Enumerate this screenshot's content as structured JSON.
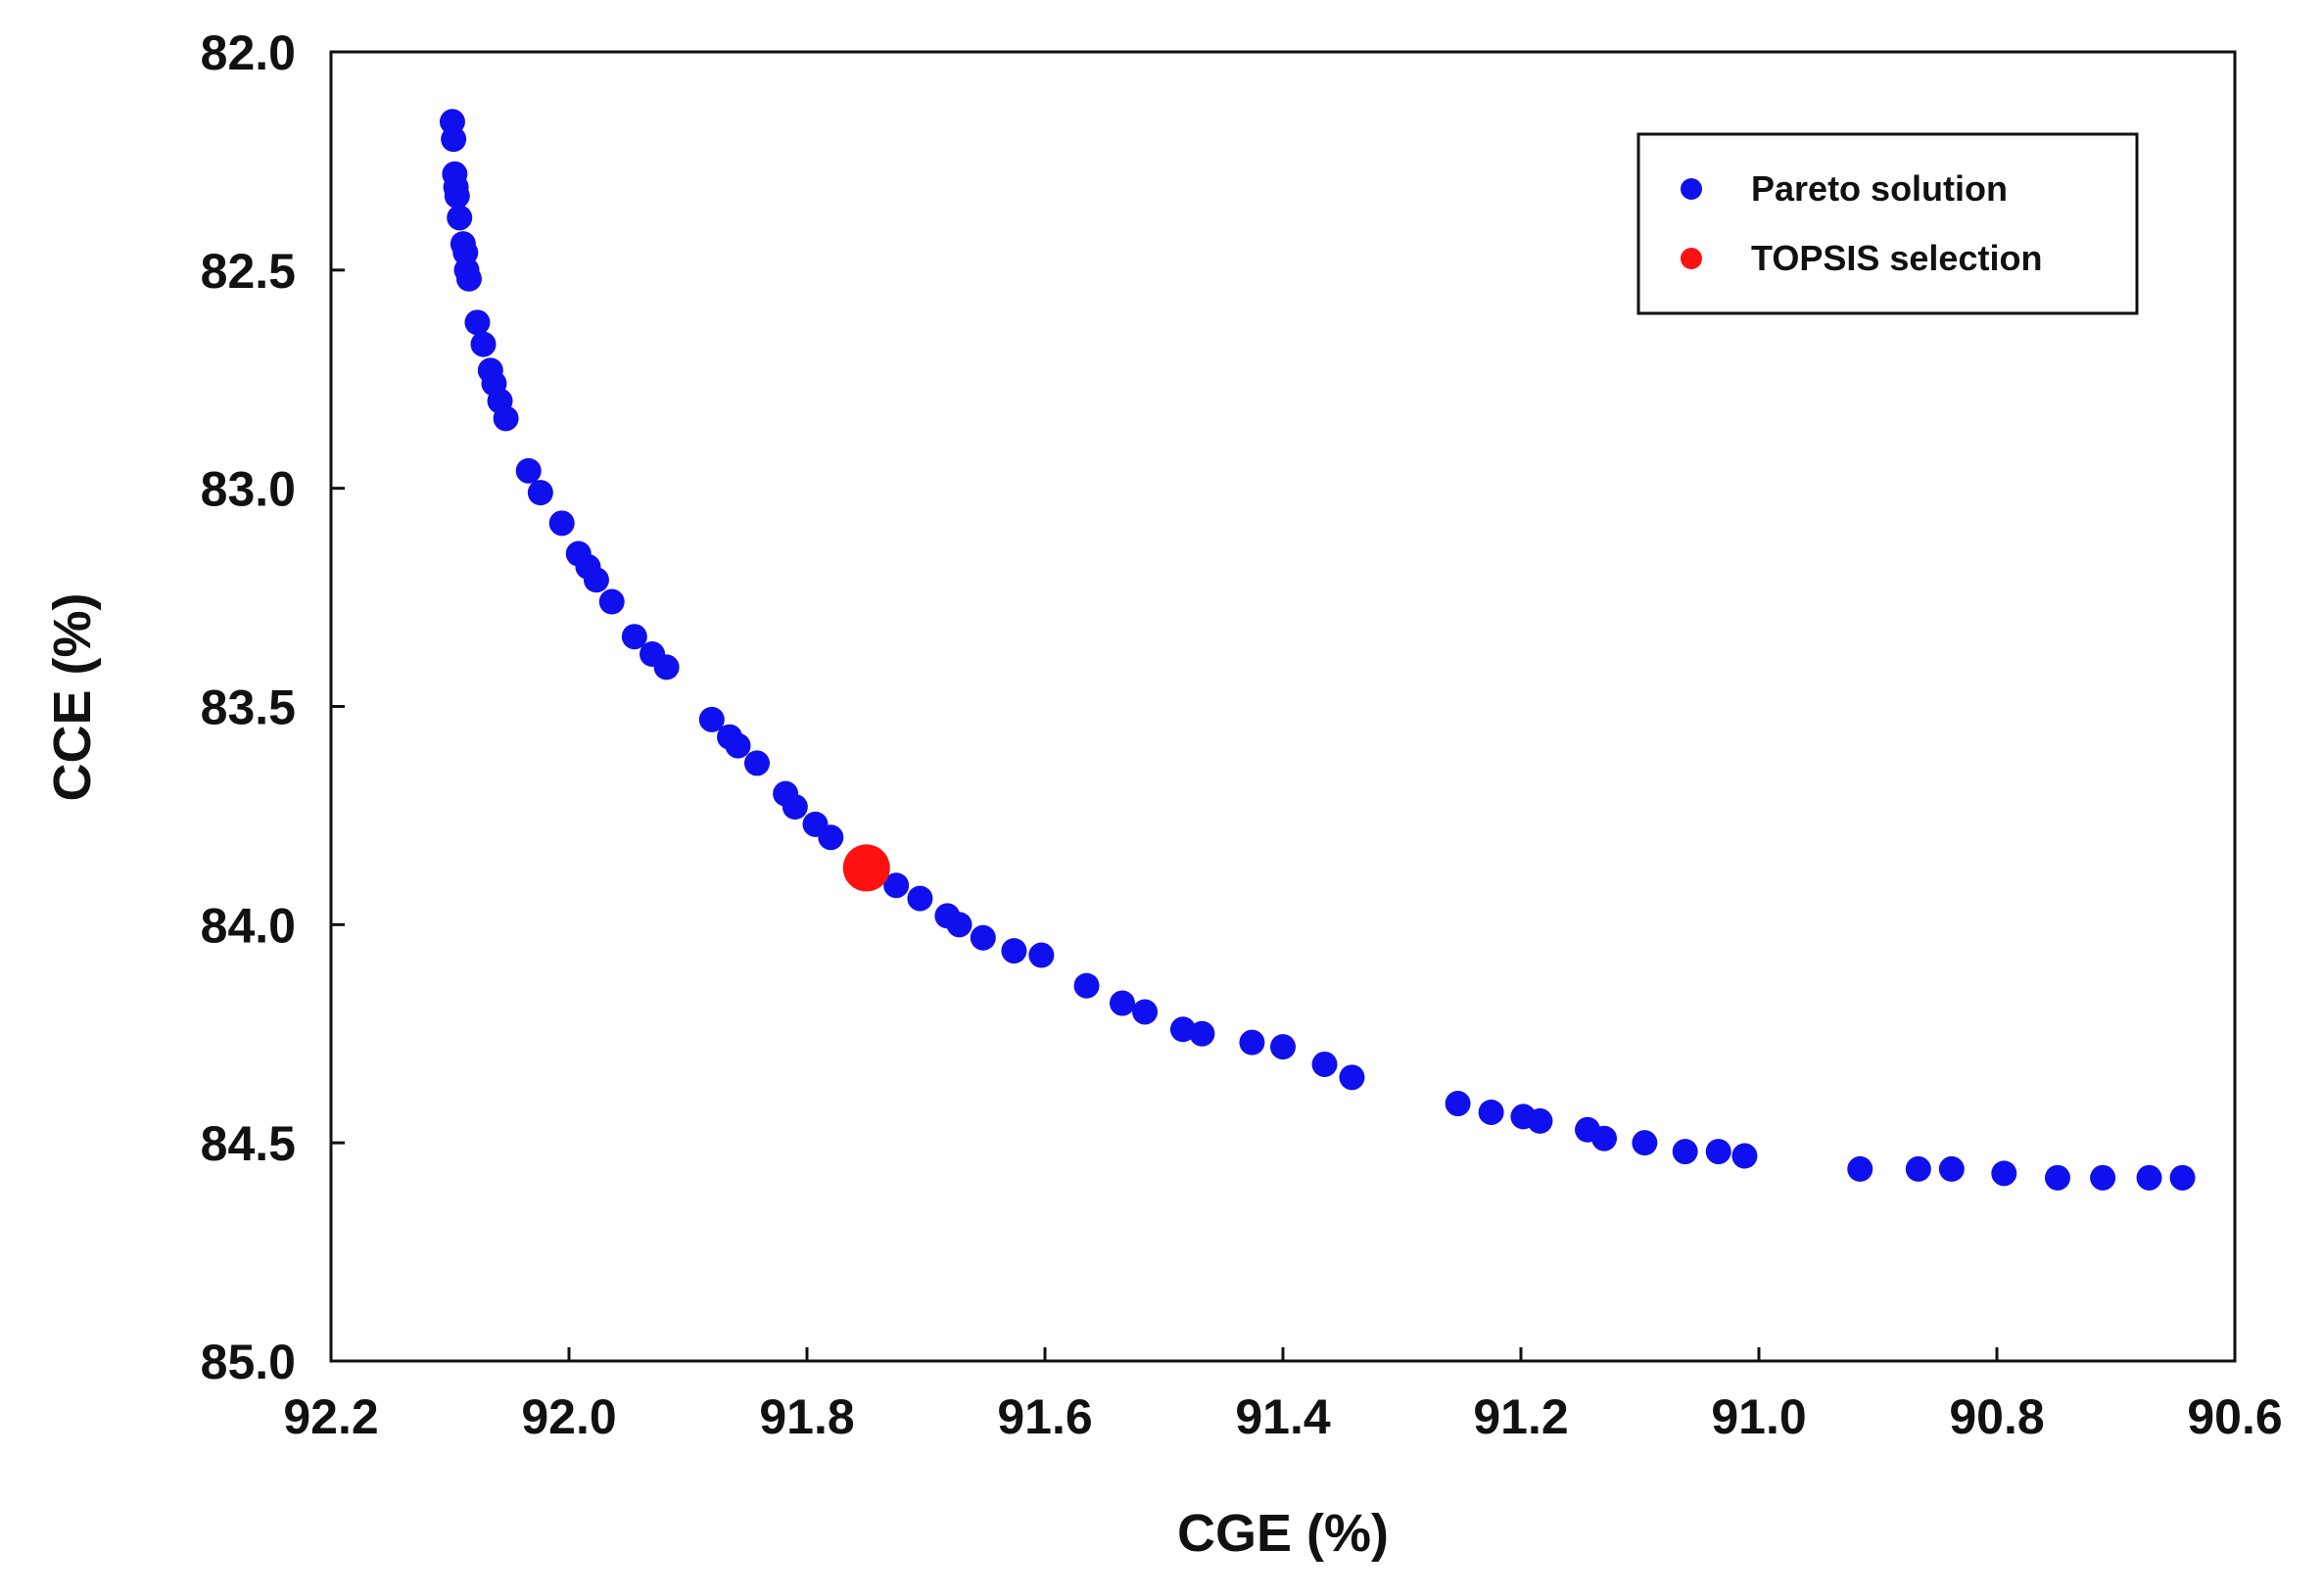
{
  "chart_data": {
    "type": "scatter",
    "title": "",
    "xlabel": "CGE (%)",
    "ylabel": "CCE (%)",
    "xlim": [
      92.2,
      90.6
    ],
    "ylim": [
      82.0,
      85.0
    ],
    "x_reversed": true,
    "y_reversed": true,
    "xticks": [
      92.2,
      92.0,
      91.8,
      91.6,
      91.4,
      91.2,
      91.0,
      90.8,
      90.6
    ],
    "yticks": [
      82.0,
      82.5,
      83.0,
      83.5,
      84.0,
      84.5,
      85.0
    ],
    "xtick_labels": [
      "92.2",
      "92.0",
      "91.8",
      "91.6",
      "91.4",
      "91.2",
      "91.0",
      "90.8",
      "90.6"
    ],
    "ytick_labels": [
      "82.0",
      "82.5",
      "83.0",
      "83.5",
      "84.0",
      "84.5",
      "85.0"
    ],
    "grid": false,
    "legend_position": "top-right",
    "colors": {
      "pareto": "#1010ee",
      "topsis": "#ff1111",
      "axis": "#111111"
    },
    "series": [
      {
        "name": "Pareto solution",
        "color": "#1010ee",
        "points": [
          [
            92.098,
            82.16
          ],
          [
            92.097,
            82.2
          ],
          [
            92.096,
            82.28
          ],
          [
            92.095,
            82.31
          ],
          [
            92.094,
            82.33
          ],
          [
            92.092,
            82.38
          ],
          [
            92.089,
            82.44
          ],
          [
            92.087,
            82.46
          ],
          [
            92.086,
            82.5
          ],
          [
            92.084,
            82.52
          ],
          [
            92.077,
            82.62
          ],
          [
            92.072,
            82.67
          ],
          [
            92.066,
            82.73
          ],
          [
            92.063,
            82.76
          ],
          [
            92.058,
            82.8
          ],
          [
            92.053,
            82.84
          ],
          [
            92.034,
            82.96
          ],
          [
            92.024,
            83.01
          ],
          [
            92.006,
            83.08
          ],
          [
            91.992,
            83.15
          ],
          [
            91.984,
            83.18
          ],
          [
            91.977,
            83.21
          ],
          [
            91.964,
            83.26
          ],
          [
            91.945,
            83.34
          ],
          [
            91.93,
            83.38
          ],
          [
            91.918,
            83.41
          ],
          [
            91.88,
            83.53
          ],
          [
            91.865,
            83.57
          ],
          [
            91.858,
            83.59
          ],
          [
            91.842,
            83.63
          ],
          [
            91.818,
            83.7
          ],
          [
            91.81,
            83.73
          ],
          [
            91.793,
            83.77
          ],
          [
            91.78,
            83.8
          ],
          [
            91.725,
            83.91
          ],
          [
            91.705,
            83.94
          ],
          [
            91.682,
            83.98
          ],
          [
            91.672,
            84.0
          ],
          [
            91.652,
            84.03
          ],
          [
            91.626,
            84.06
          ],
          [
            91.603,
            84.07
          ],
          [
            91.565,
            84.14
          ],
          [
            91.535,
            84.18
          ],
          [
            91.516,
            84.2
          ],
          [
            91.484,
            84.24
          ],
          [
            91.468,
            84.25
          ],
          [
            91.426,
            84.27
          ],
          [
            91.4,
            84.28
          ],
          [
            91.365,
            84.32
          ],
          [
            91.342,
            84.35
          ],
          [
            91.253,
            84.41
          ],
          [
            91.225,
            84.43
          ],
          [
            91.198,
            84.44
          ],
          [
            91.184,
            84.45
          ],
          [
            91.144,
            84.47
          ],
          [
            91.13,
            84.49
          ],
          [
            91.096,
            84.5
          ],
          [
            91.062,
            84.52
          ],
          [
            91.034,
            84.52
          ],
          [
            91.012,
            84.53
          ],
          [
            90.915,
            84.56
          ],
          [
            90.866,
            84.56
          ],
          [
            90.838,
            84.56
          ],
          [
            90.794,
            84.57
          ],
          [
            90.749,
            84.58
          ],
          [
            90.711,
            84.58
          ],
          [
            90.672,
            84.58
          ],
          [
            90.644,
            84.58
          ]
        ]
      },
      {
        "name": "TOPSIS selection",
        "color": "#ff1111",
        "points": [
          [
            91.75,
            83.87
          ]
        ]
      }
    ]
  }
}
